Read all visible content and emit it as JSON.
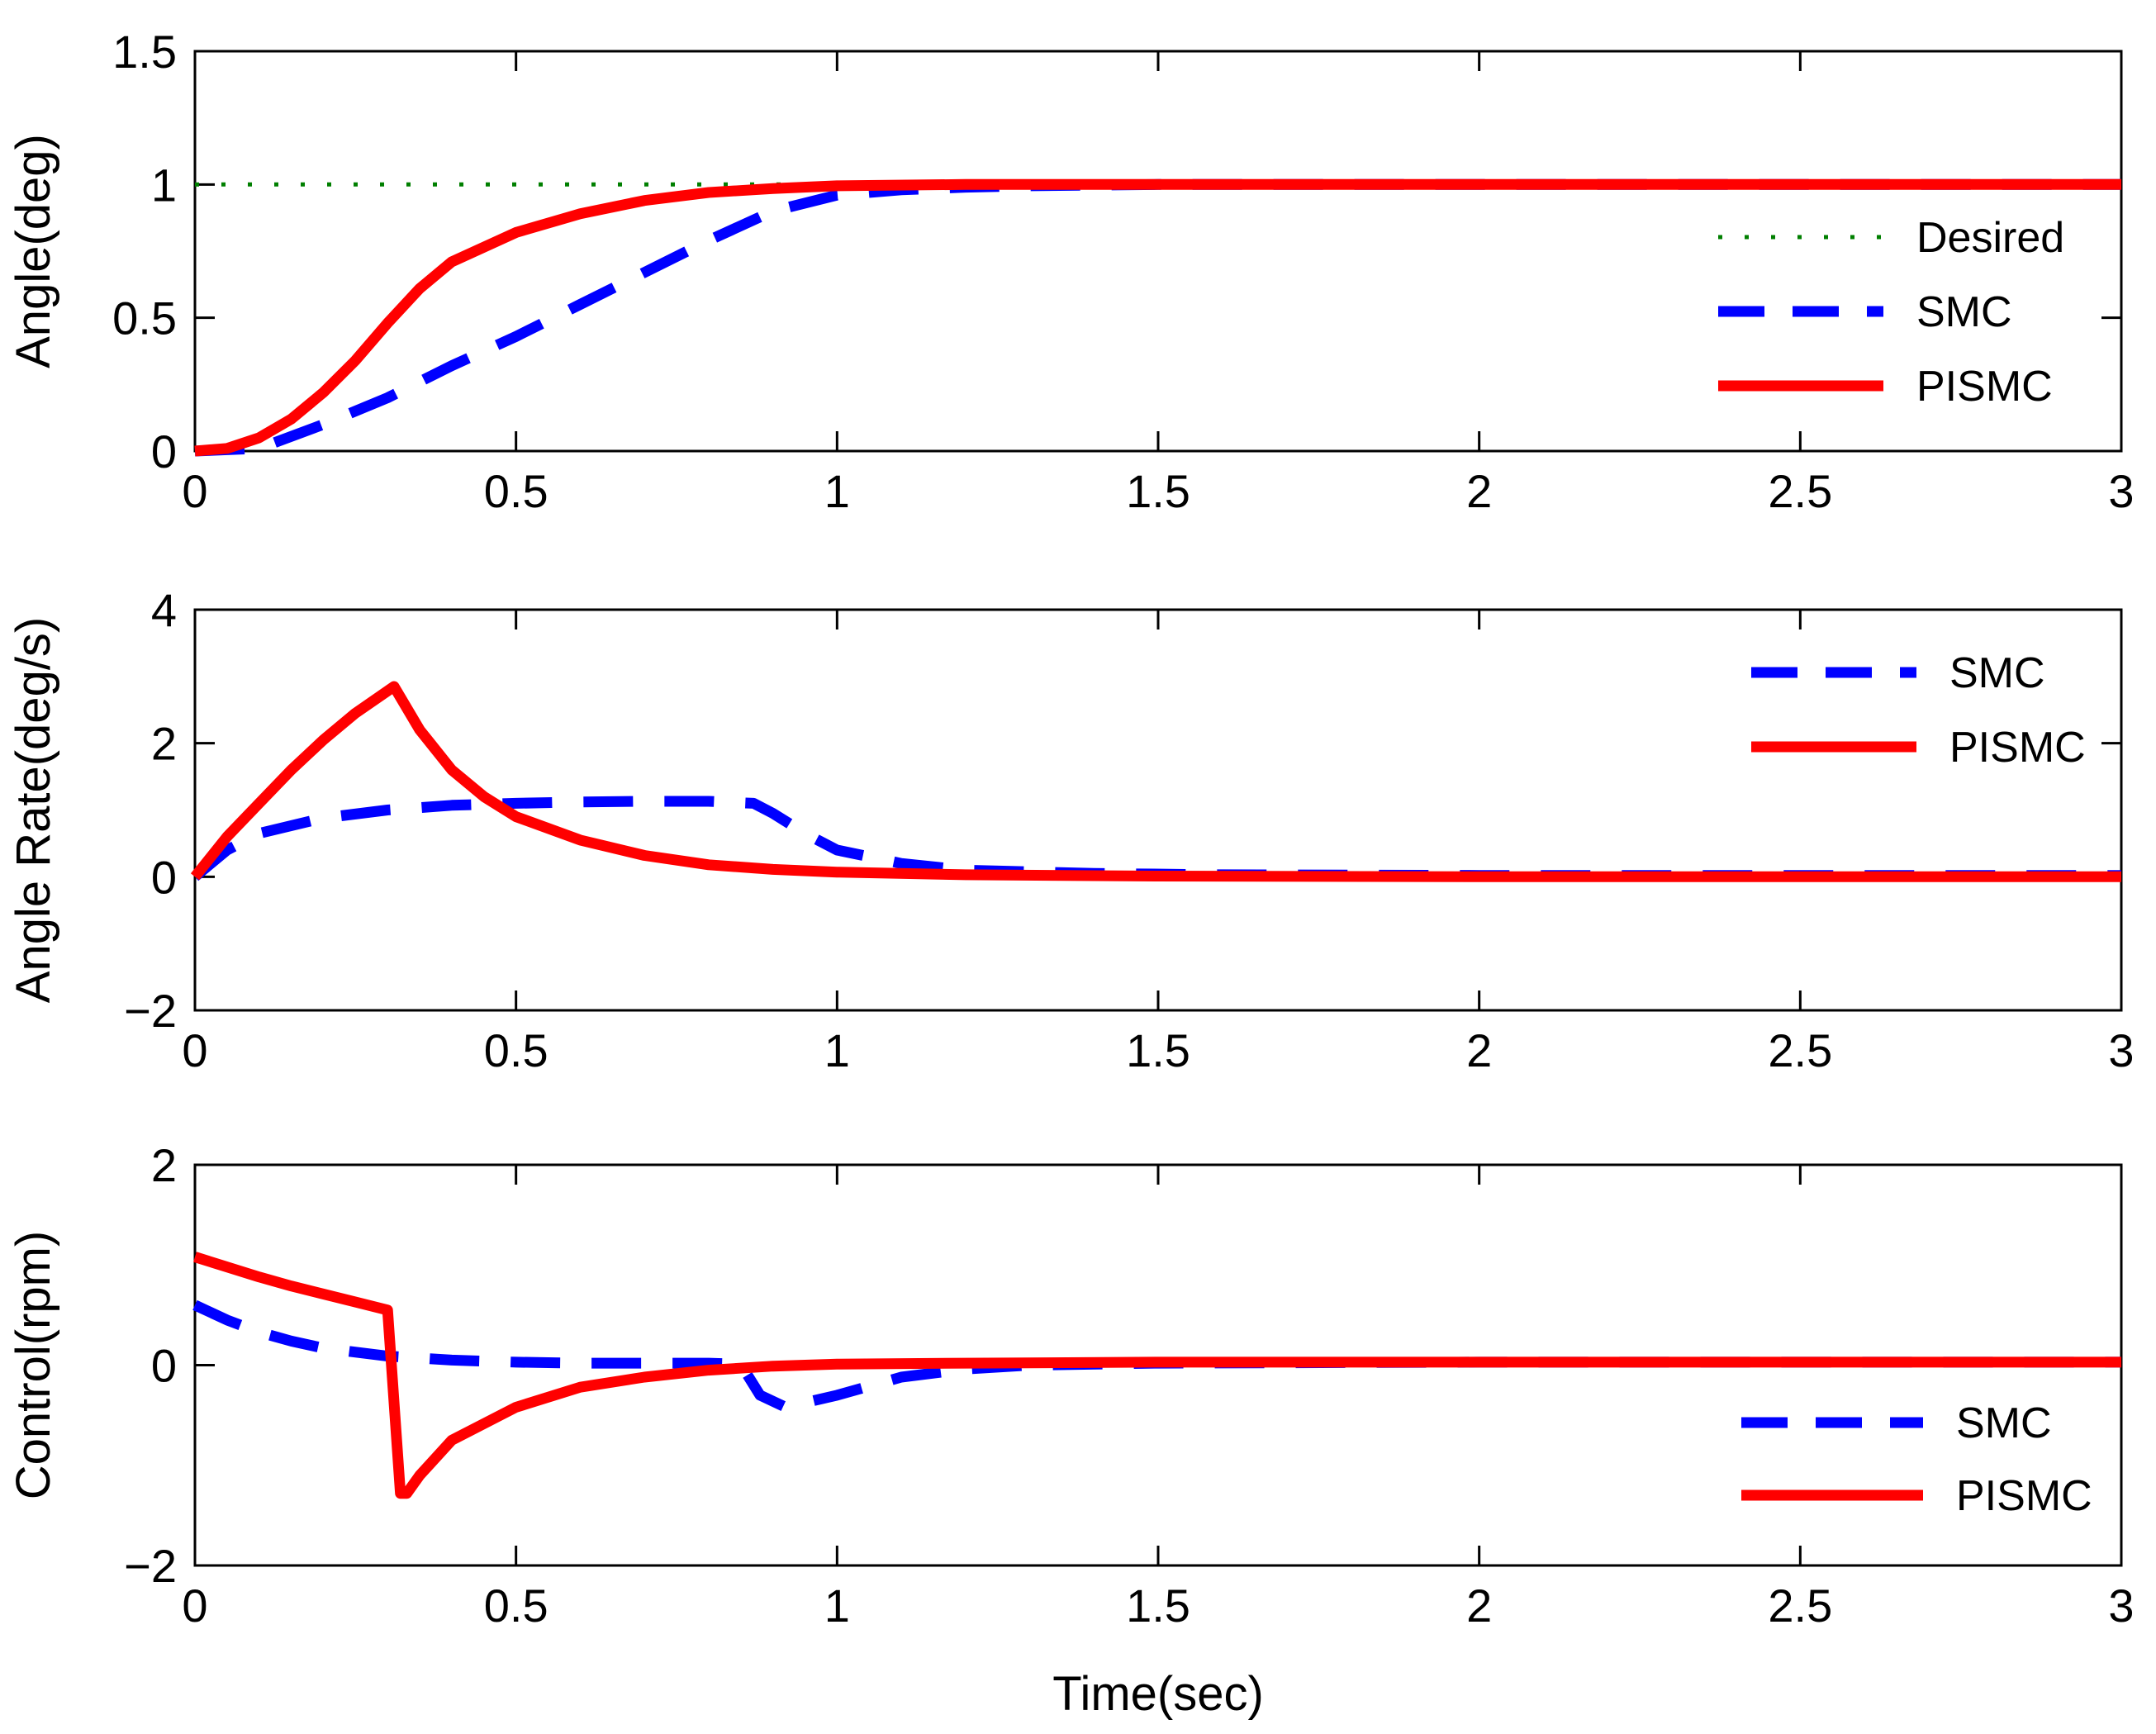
{
  "chart_data": [
    {
      "type": "line",
      "title": "",
      "xlabel": "",
      "ylabel": "Angle(deg)",
      "xlim": [
        0,
        3
      ],
      "ylim": [
        0,
        1.5
      ],
      "xticks": [
        0,
        0.5,
        1,
        1.5,
        2,
        2.5,
        3
      ],
      "xtick_labels": [
        "0",
        "0.5",
        "1",
        "1.5",
        "2",
        "2.5",
        "3"
      ],
      "yticks": [
        0,
        0.5,
        1,
        1.5
      ],
      "ytick_labels": [
        "0",
        "0.5",
        "1",
        "1.5"
      ],
      "legend_position": "right",
      "series": [
        {
          "name": "Desired",
          "color": "#007f00",
          "style": "dotted",
          "x": [
            0,
            3
          ],
          "y": [
            1,
            1
          ]
        },
        {
          "name": "SMC",
          "color": "#0000ff",
          "style": "dashed",
          "x": [
            0,
            0.1,
            0.2,
            0.3,
            0.4,
            0.5,
            0.6,
            0.7,
            0.8,
            0.9,
            1.0,
            1.1,
            1.2,
            1.3,
            1.5,
            2.0,
            3.0
          ],
          "y": [
            0,
            0.01,
            0.1,
            0.2,
            0.32,
            0.43,
            0.55,
            0.67,
            0.79,
            0.9,
            0.96,
            0.98,
            0.99,
            0.995,
            1.0,
            1.0,
            1.0
          ]
        },
        {
          "name": "PISMC",
          "color": "#ff0000",
          "style": "solid",
          "x": [
            0,
            0.05,
            0.1,
            0.15,
            0.2,
            0.25,
            0.3,
            0.35,
            0.4,
            0.5,
            0.6,
            0.7,
            0.8,
            0.9,
            1.0,
            1.2,
            1.5,
            2.0,
            3.0
          ],
          "y": [
            0,
            0.01,
            0.05,
            0.12,
            0.22,
            0.34,
            0.48,
            0.61,
            0.71,
            0.82,
            0.89,
            0.94,
            0.97,
            0.985,
            0.995,
            1.0,
            1.0,
            1.0,
            1.0
          ]
        }
      ]
    },
    {
      "type": "line",
      "title": "",
      "xlabel": "",
      "ylabel": "Angle Rate(deg/s)",
      "xlim": [
        0,
        3
      ],
      "ylim": [
        -2,
        4
      ],
      "xticks": [
        0,
        0.5,
        1,
        1.5,
        2,
        2.5,
        3
      ],
      "xtick_labels": [
        "0",
        "0.5",
        "1",
        "1.5",
        "2",
        "2.5",
        "3"
      ],
      "yticks": [
        -2,
        0,
        2,
        4
      ],
      "ytick_labels": [
        "−2",
        "0",
        "2",
        "4"
      ],
      "legend_position": "top-right",
      "series": [
        {
          "name": "SMC",
          "color": "#0000ff",
          "style": "dashed",
          "x": [
            0,
            0.05,
            0.1,
            0.2,
            0.3,
            0.4,
            0.5,
            0.6,
            0.7,
            0.8,
            0.87,
            0.9,
            0.95,
            1.0,
            1.1,
            1.2,
            1.4,
            1.6,
            2.0,
            3.0
          ],
          "y": [
            0,
            0.4,
            0.65,
            0.88,
            1.0,
            1.07,
            1.1,
            1.12,
            1.13,
            1.13,
            1.1,
            0.95,
            0.65,
            0.4,
            0.2,
            0.1,
            0.05,
            0.03,
            0.02,
            0.02
          ]
        },
        {
          "name": "PISMC",
          "color": "#ff0000",
          "style": "solid",
          "x": [
            0,
            0.05,
            0.1,
            0.15,
            0.2,
            0.25,
            0.31,
            0.35,
            0.4,
            0.45,
            0.5,
            0.6,
            0.7,
            0.8,
            0.9,
            1.0,
            1.2,
            1.5,
            2.0,
            3.0
          ],
          "y": [
            0,
            0.6,
            1.1,
            1.6,
            2.05,
            2.45,
            2.85,
            2.2,
            1.6,
            1.2,
            0.9,
            0.55,
            0.32,
            0.18,
            0.11,
            0.07,
            0.03,
            0.01,
            0.0,
            0.0
          ]
        }
      ]
    },
    {
      "type": "line",
      "title": "",
      "xlabel": "Time(sec)",
      "ylabel": "Control(rpm)",
      "xlim": [
        0,
        3
      ],
      "ylim": [
        -2,
        2
      ],
      "xticks": [
        0,
        0.5,
        1,
        1.5,
        2,
        2.5,
        3
      ],
      "xtick_labels": [
        "0",
        "0.5",
        "1",
        "1.5",
        "2",
        "2.5",
        "3"
      ],
      "yticks": [
        -2,
        0,
        2
      ],
      "ytick_labels": [
        "−2",
        "0",
        "2"
      ],
      "legend_position": "bottom-right",
      "series": [
        {
          "name": "SMC",
          "color": "#0000ff",
          "style": "dashed",
          "x": [
            0,
            0.05,
            0.1,
            0.15,
            0.2,
            0.3,
            0.4,
            0.5,
            0.6,
            0.7,
            0.8,
            0.85,
            0.88,
            0.92,
            1.0,
            1.1,
            1.2,
            1.3,
            1.5,
            2.0,
            3.0
          ],
          "y": [
            0.6,
            0.45,
            0.33,
            0.24,
            0.17,
            0.09,
            0.05,
            0.03,
            0.02,
            0.02,
            0.02,
            0.01,
            -0.3,
            -0.42,
            -0.3,
            -0.12,
            -0.04,
            0.0,
            0.02,
            0.03,
            0.03
          ]
        },
        {
          "name": "PISMC",
          "color": "#ff0000",
          "style": "solid",
          "x": [
            0,
            0.05,
            0.1,
            0.15,
            0.2,
            0.25,
            0.3,
            0.32,
            0.33,
            0.35,
            0.4,
            0.5,
            0.6,
            0.7,
            0.8,
            0.9,
            1.0,
            1.2,
            1.5,
            2.0,
            3.0
          ],
          "y": [
            1.08,
            0.98,
            0.88,
            0.79,
            0.71,
            0.63,
            0.55,
            -1.28,
            -1.28,
            -1.1,
            -0.75,
            -0.42,
            -0.22,
            -0.12,
            -0.05,
            -0.01,
            0.01,
            0.02,
            0.03,
            0.03,
            0.03
          ]
        }
      ]
    }
  ]
}
